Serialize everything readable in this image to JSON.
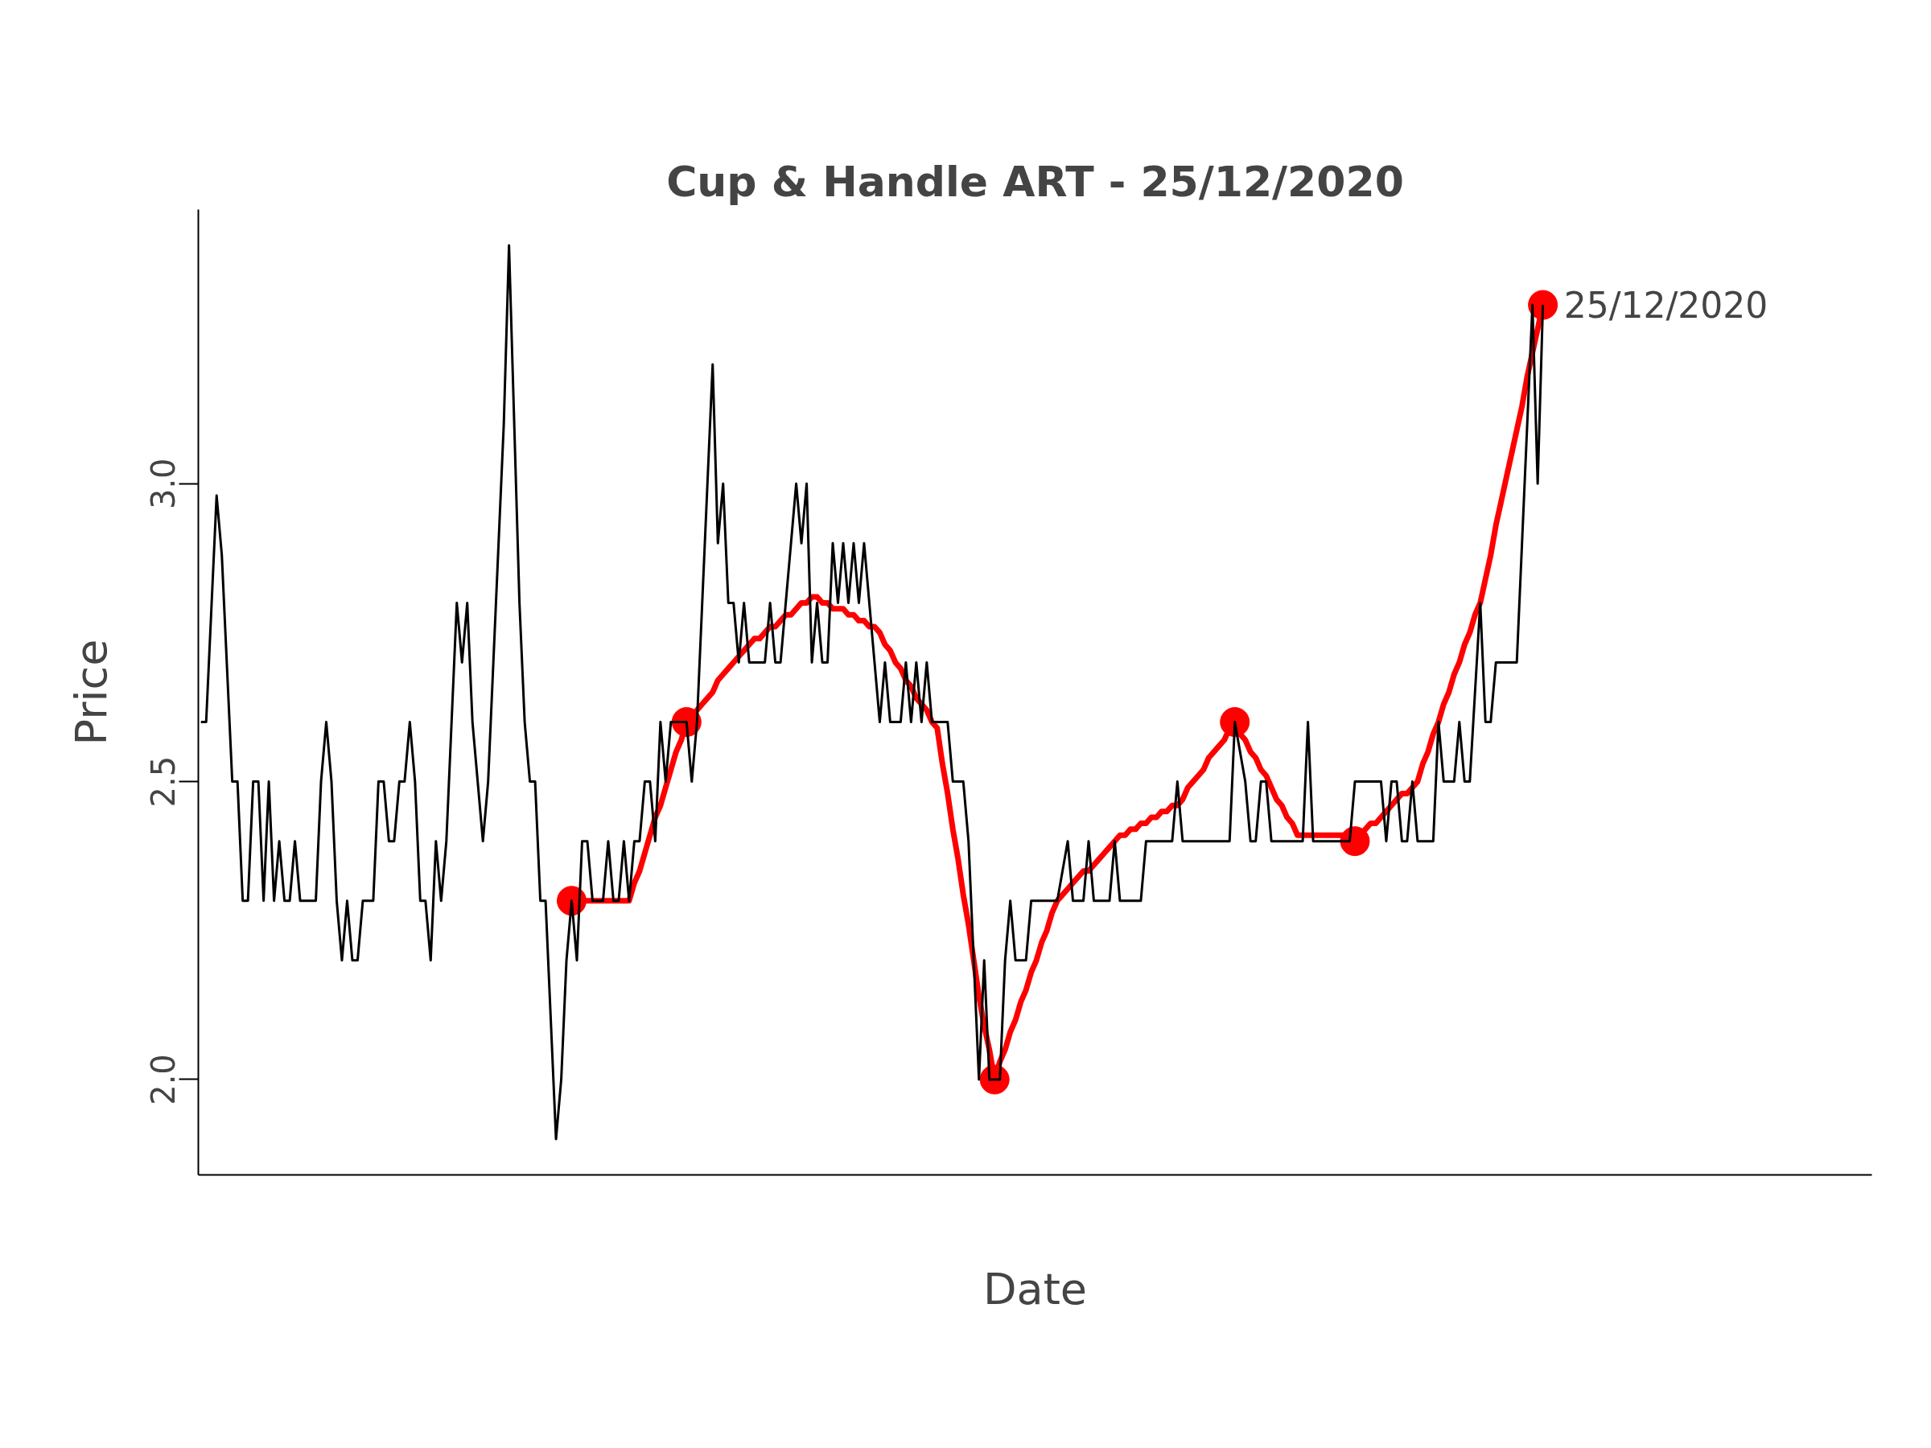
{
  "chart_data": {
    "type": "line",
    "title": "Cup & Handle ART - 25/12/2020",
    "xlabel": "Date",
    "ylabel": "Price",
    "categories": [
      null,
      null,
      null,
      null,
      null,
      null,
      null,
      null,
      null,
      null,
      null,
      null,
      null,
      null,
      null,
      null,
      null,
      null,
      null,
      null,
      null,
      null,
      null,
      null,
      null,
      null,
      null,
      null,
      null,
      null,
      null,
      null,
      null,
      null,
      null,
      null,
      null,
      null,
      null,
      null,
      null,
      null,
      null,
      null,
      null,
      null,
      null,
      null,
      null,
      null,
      null,
      null,
      null,
      null,
      null,
      null,
      null,
      null,
      null,
      null,
      null,
      null,
      null,
      null,
      null,
      null,
      null,
      null,
      null,
      null,
      null,
      null,
      null,
      null,
      null,
      null,
      null,
      null,
      null,
      null,
      null,
      null,
      null,
      null,
      null,
      null,
      null,
      null,
      null,
      null,
      null,
      null,
      null,
      null,
      null,
      null,
      null,
      null,
      null,
      null,
      null,
      null,
      null,
      null,
      null,
      null,
      null,
      null,
      null,
      null,
      null,
      null,
      null,
      null,
      null,
      null,
      null,
      null,
      null,
      null,
      null,
      null,
      null,
      null,
      null,
      null,
      null,
      null,
      null,
      null,
      null,
      null,
      null,
      null,
      null,
      null,
      null,
      null,
      null,
      null,
      null,
      null,
      null,
      null,
      null,
      null,
      null,
      null,
      null,
      null,
      null,
      null,
      null,
      null,
      null,
      null,
      null,
      null,
      null,
      null,
      null,
      null,
      null,
      null,
      null,
      null,
      null,
      null,
      null,
      null,
      null,
      null,
      null,
      null,
      null,
      null,
      null,
      null,
      null,
      null,
      null,
      null,
      null,
      null,
      null,
      null,
      null,
      null,
      null,
      null,
      null,
      null,
      null,
      null,
      null,
      null,
      null,
      null,
      null,
      null,
      null,
      null,
      null,
      null,
      null,
      null,
      null,
      null,
      null,
      null,
      null,
      null,
      null,
      null,
      null,
      null,
      null,
      null,
      null,
      null,
      null,
      null,
      null,
      null,
      null,
      null,
      null,
      null,
      null,
      null,
      null,
      null,
      null,
      null,
      null,
      null,
      null,
      null,
      null,
      null,
      null,
      null,
      null,
      null,
      null,
      null,
      null,
      null,
      null,
      null,
      null,
      null,
      null,
      null,
      null,
      null,
      null,
      null
    ],
    "ylim": [
      1.84,
      3.46
    ],
    "yticks": [
      {
        "value": 2,
        "label": "2.0"
      },
      {
        "value": 2.5,
        "label": "2.5"
      },
      {
        "value": 3,
        "label": "3.0"
      }
    ],
    "line_style": "solid",
    "series": [
      {
        "color": "#000000",
        "values": [
          2.6,
          2.6,
          2.79,
          2.98,
          2.88,
          2.69,
          2.5,
          2.5,
          2.3,
          2.3,
          2.5,
          2.5,
          2.3,
          2.5,
          2.3,
          2.4,
          2.3,
          2.3,
          2.4,
          2.3,
          2.3,
          2.3,
          2.3,
          2.5,
          2.6,
          2.5,
          2.3,
          2.2,
          2.3,
          2.2,
          2.2,
          2.3,
          2.3,
          2.3,
          2.5,
          2.5,
          2.4,
          2.4,
          2.5,
          2.5,
          2.6,
          2.5,
          2.3,
          2.3,
          2.2,
          2.4,
          2.3,
          2.4,
          2.6,
          2.8,
          2.7,
          2.8,
          2.6,
          2.5,
          2.4,
          2.5,
          2.7,
          2.9,
          3.1,
          3.4,
          3.1,
          2.8,
          2.6,
          2.5,
          2.5,
          2.3,
          2.3,
          2.1,
          1.9,
          2.0,
          2.2,
          2.3,
          2.2,
          2.4,
          2.4,
          2.3,
          2.3,
          2.3,
          2.4,
          2.3,
          2.3,
          2.4,
          2.3,
          2.4,
          2.4,
          2.5,
          2.5,
          2.4,
          2.6,
          2.5,
          2.6,
          2.6,
          2.6,
          2.6,
          2.5,
          2.6,
          2.8,
          3.0,
          3.2,
          2.9,
          3.0,
          2.8,
          2.8,
          2.7,
          2.8,
          2.7,
          2.7,
          2.7,
          2.7,
          2.8,
          2.7,
          2.7,
          2.8,
          2.9,
          3.0,
          2.9,
          3.0,
          2.7,
          2.8,
          2.7,
          2.7,
          2.9,
          2.8,
          2.9,
          2.8,
          2.9,
          2.8,
          2.9,
          2.8,
          2.7,
          2.6,
          2.7,
          2.6,
          2.6,
          2.6,
          2.7,
          2.6,
          2.7,
          2.6,
          2.7,
          2.6,
          2.6,
          2.6,
          2.6,
          2.5,
          2.5,
          2.5,
          2.4,
          2.2,
          2.0,
          2.2,
          2.0,
          2.0,
          2.0,
          2.2,
          2.3,
          2.2,
          2.2,
          2.2,
          2.3,
          2.3,
          2.3,
          2.3,
          2.3,
          2.3,
          2.35,
          2.4,
          2.3,
          2.3,
          2.3,
          2.4,
          2.3,
          2.3,
          2.3,
          2.3,
          2.4,
          2.3,
          2.3,
          2.3,
          2.3,
          2.3,
          2.4,
          2.4,
          2.4,
          2.4,
          2.4,
          2.4,
          2.5,
          2.4,
          2.4,
          2.4,
          2.4,
          2.4,
          2.4,
          2.4,
          2.4,
          2.4,
          2.4,
          2.6,
          2.55,
          2.5,
          2.4,
          2.4,
          2.5,
          2.5,
          2.4,
          2.4,
          2.4,
          2.4,
          2.4,
          2.4,
          2.4,
          2.6,
          2.4,
          2.4,
          2.4,
          2.4,
          2.4,
          2.4,
          2.4,
          2.4,
          2.5,
          2.5,
          2.5,
          2.5,
          2.5,
          2.5,
          2.4,
          2.5,
          2.5,
          2.4,
          2.4,
          2.5,
          2.4,
          2.4,
          2.4,
          2.4,
          2.6,
          2.5,
          2.5,
          2.5,
          2.6,
          2.5,
          2.5,
          2.65,
          2.8,
          2.6,
          2.6,
          2.7,
          2.7,
          2.7,
          2.7,
          2.7,
          2.9,
          3.1,
          3.3,
          3.0,
          3.3
        ]
      },
      {
        "color": "#ff0000",
        "values": [
          null,
          null,
          null,
          null,
          null,
          null,
          null,
          null,
          null,
          null,
          null,
          null,
          null,
          null,
          null,
          null,
          null,
          null,
          null,
          null,
          null,
          null,
          null,
          null,
          null,
          null,
          null,
          null,
          null,
          null,
          null,
          null,
          null,
          null,
          null,
          null,
          null,
          null,
          null,
          null,
          null,
          null,
          null,
          null,
          null,
          null,
          null,
          null,
          null,
          null,
          null,
          null,
          null,
          null,
          null,
          null,
          null,
          null,
          null,
          null,
          null,
          null,
          null,
          null,
          null,
          null,
          null,
          null,
          null,
          null,
          null,
          2.3,
          2.3,
          2.3,
          2.3,
          2.3,
          2.3,
          2.3,
          2.3,
          2.3,
          2.3,
          2.3,
          2.3,
          2.33,
          2.35,
          2.38,
          2.41,
          2.44,
          2.46,
          2.49,
          2.52,
          2.55,
          2.57,
          2.6,
          2.61,
          2.62,
          2.63,
          2.64,
          2.65,
          2.67,
          2.68,
          2.69,
          2.7,
          2.71,
          2.72,
          2.73,
          2.74,
          2.74,
          2.75,
          2.76,
          2.76,
          2.77,
          2.78,
          2.78,
          2.79,
          2.8,
          2.8,
          2.81,
          2.81,
          2.8,
          2.8,
          2.79,
          2.79,
          2.79,
          2.78,
          2.78,
          2.77,
          2.77,
          2.76,
          2.76,
          2.75,
          2.73,
          2.72,
          2.7,
          2.69,
          2.67,
          2.66,
          2.64,
          2.63,
          2.62,
          2.6,
          2.59,
          2.53,
          2.48,
          2.42,
          2.37,
          2.31,
          2.26,
          2.2,
          2.14,
          2.09,
          2.05,
          2.0,
          2.03,
          2.05,
          2.08,
          2.1,
          2.13,
          2.15,
          2.18,
          2.2,
          2.23,
          2.25,
          2.28,
          2.3,
          2.31,
          2.32,
          2.33,
          2.34,
          2.35,
          2.35,
          2.36,
          2.37,
          2.38,
          2.39,
          2.4,
          2.41,
          2.41,
          2.42,
          2.42,
          2.43,
          2.43,
          2.44,
          2.44,
          2.45,
          2.45,
          2.46,
          2.46,
          2.47,
          2.49,
          2.5,
          2.51,
          2.52,
          2.54,
          2.55,
          2.56,
          2.57,
          2.59,
          2.6,
          2.58,
          2.57,
          2.55,
          2.54,
          2.52,
          2.51,
          2.49,
          2.47,
          2.46,
          2.44,
          2.43,
          2.41,
          2.41,
          2.41,
          2.41,
          2.41,
          2.41,
          2.41,
          2.41,
          2.41,
          2.41,
          2.41,
          2.4,
          2.41,
          2.42,
          2.43,
          2.43,
          2.44,
          2.45,
          2.46,
          2.47,
          2.48,
          2.48,
          2.49,
          2.5,
          2.53,
          2.55,
          2.58,
          2.6,
          2.63,
          2.65,
          2.68,
          2.7,
          2.73,
          2.75,
          2.78,
          2.8,
          2.84,
          2.88,
          2.93,
          2.97,
          3.01,
          3.05,
          3.09,
          3.13,
          3.18,
          3.22,
          3.26,
          3.3
        ]
      },
      {
        "type": "scatter",
        "color": "#ff0000",
        "marker": "circle",
        "values": [
          null,
          null,
          null,
          null,
          null,
          null,
          null,
          null,
          null,
          null,
          null,
          null,
          null,
          null,
          null,
          null,
          null,
          null,
          null,
          null,
          null,
          null,
          null,
          null,
          null,
          null,
          null,
          null,
          null,
          null,
          null,
          null,
          null,
          null,
          null,
          null,
          null,
          null,
          null,
          null,
          null,
          null,
          null,
          null,
          null,
          null,
          null,
          null,
          null,
          null,
          null,
          null,
          null,
          null,
          null,
          null,
          null,
          null,
          null,
          null,
          null,
          null,
          null,
          null,
          null,
          null,
          null,
          null,
          null,
          null,
          null,
          2.3,
          null,
          null,
          null,
          null,
          null,
          null,
          null,
          null,
          null,
          null,
          null,
          null,
          null,
          null,
          null,
          null,
          null,
          null,
          null,
          null,
          null,
          2.6,
          null,
          null,
          null,
          null,
          null,
          null,
          null,
          null,
          null,
          null,
          null,
          null,
          null,
          null,
          null,
          null,
          null,
          null,
          null,
          null,
          null,
          null,
          null,
          null,
          null,
          null,
          null,
          null,
          null,
          null,
          null,
          null,
          null,
          null,
          null,
          null,
          null,
          null,
          null,
          null,
          null,
          null,
          null,
          null,
          null,
          null,
          null,
          null,
          null,
          null,
          null,
          null,
          null,
          null,
          null,
          null,
          null,
          null,
          2.0,
          null,
          null,
          null,
          null,
          null,
          null,
          null,
          null,
          null,
          null,
          null,
          null,
          null,
          null,
          null,
          null,
          null,
          null,
          null,
          null,
          null,
          null,
          null,
          null,
          null,
          null,
          null,
          null,
          null,
          null,
          null,
          null,
          null,
          null,
          null,
          null,
          null,
          null,
          null,
          null,
          null,
          null,
          null,
          null,
          null,
          2.6,
          null,
          null,
          null,
          null,
          null,
          null,
          null,
          null,
          null,
          null,
          null,
          null,
          null,
          null,
          null,
          null,
          null,
          null,
          null,
          null,
          null,
          null,
          2.4,
          null,
          null,
          null,
          null,
          null,
          null,
          null,
          null,
          null,
          null,
          null,
          null,
          null,
          null,
          null,
          null,
          null,
          null,
          null,
          null,
          null,
          null,
          null,
          null,
          null,
          null,
          null,
          null,
          null,
          null,
          null,
          null,
          null,
          null,
          null,
          3.3
        ]
      }
    ],
    "annotations": [
      "25/12/2020"
    ]
  }
}
